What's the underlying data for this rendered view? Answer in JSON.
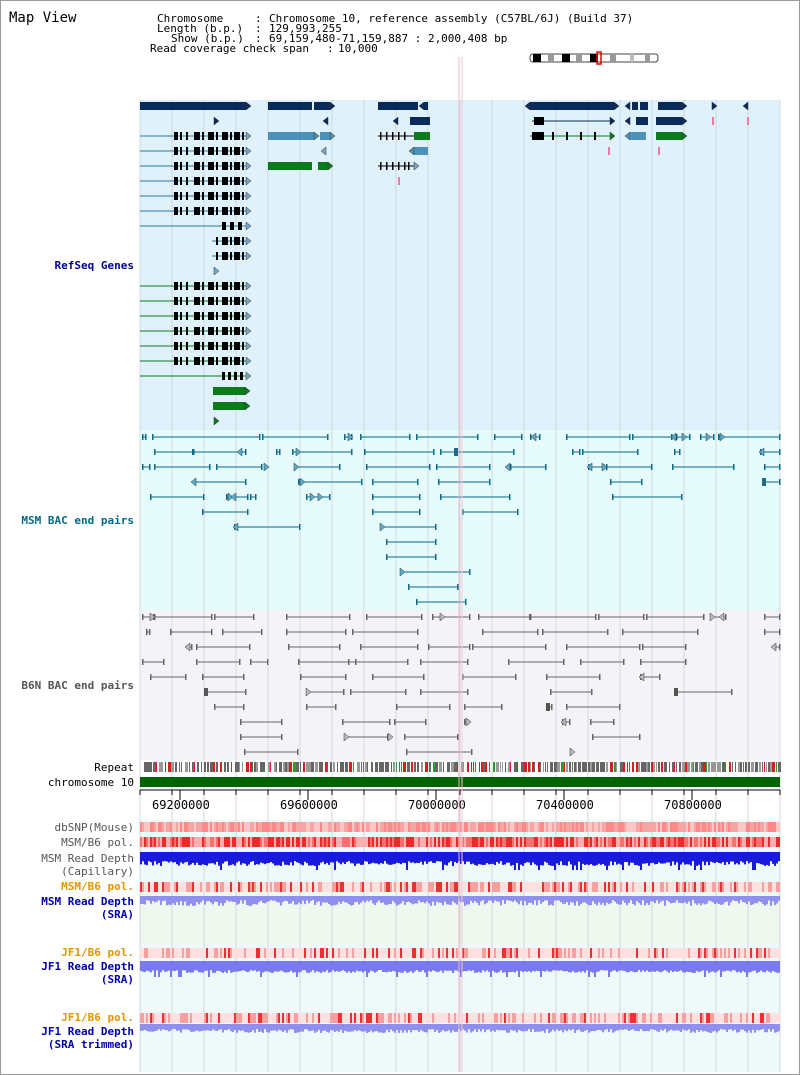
{
  "page": {
    "title": "Map View"
  },
  "header": {
    "chromosome_label": "Chromosome",
    "chromosome_value": "Chromosome 10, reference assembly (C57BL/6J) (Build 37)",
    "length_label": "Length (b.p.)",
    "length_value": "129,993,255",
    "show_label": "Show (b.p.)",
    "show_value": "69,159,480-71,159,887 : 2,000,408 bp",
    "coverage_label": "Read coverage check span",
    "coverage_value": "10,000"
  },
  "tracks": {
    "refseq": "RefSeq Genes",
    "msm_bac": "MSM BAC end pairs",
    "b6n_bac": "B6N BAC end pairs",
    "repeat": "Repeat",
    "chromosome": "chromosome 10",
    "dbsnp": "dbSNP(Mouse)",
    "msm_pol1": "MSM/B6 pol.",
    "msm_depth_cap_1": "MSM Read Depth",
    "msm_depth_cap_2": "(Capillary)",
    "msm_pol2": "MSM/B6 pol.",
    "msm_depth_sra_1": "MSM Read Depth",
    "msm_depth_sra_2": "(SRA)",
    "jf1_pol1": "JF1/B6 pol.",
    "jf1_depth_1": "JF1 Read Depth",
    "jf1_depth_2": "(SRA)",
    "jf1_pol2": "JF1/B6 pol.",
    "jf1_trim_1": "JF1 Read Depth",
    "jf1_trim_2": "(SRA trimmed)"
  },
  "axis": {
    "ticks": [
      "69200000",
      "69600000",
      "70000000",
      "70400000",
      "70800000"
    ]
  },
  "colors": {
    "refseq_bg": "#dff1fa",
    "msm_bg": "#e6fbfb",
    "b6n_bg": "#f4f4f8",
    "msm_label": "#006a8a",
    "b6n_label": "#555555",
    "refseq_label": "#00008b",
    "pol_label_orange": "#e69500",
    "depth_label_blue": "#0000aa",
    "chromosome_green": "#006400"
  }
}
